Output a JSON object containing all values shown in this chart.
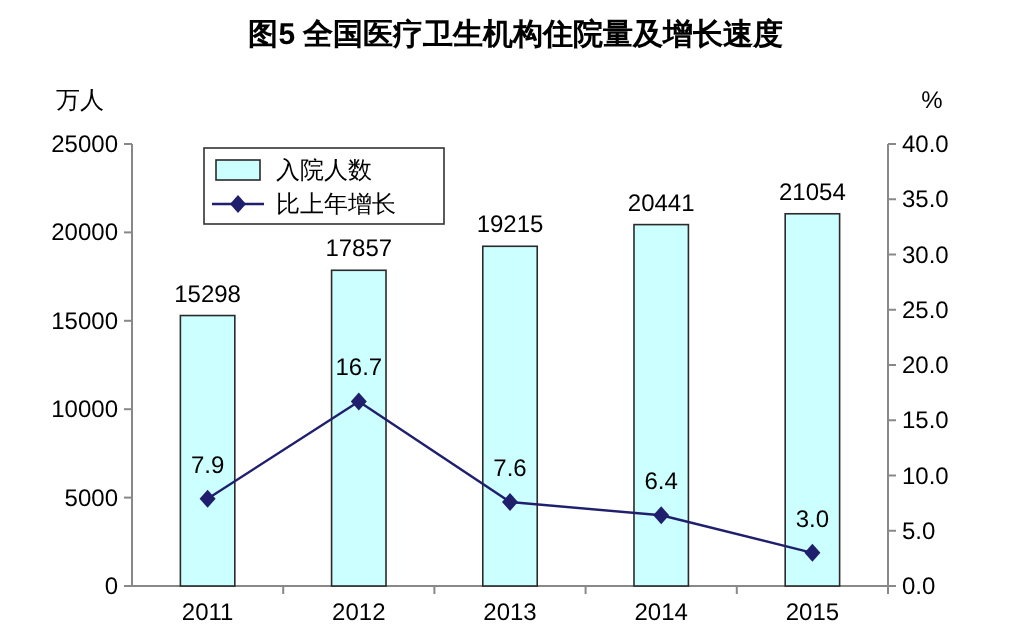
{
  "chart_data": {
    "type": "bar",
    "title": "图5  全国医疗卫生机构住院量及增长速度",
    "ylabel": "万人",
    "y2label": "%",
    "categories": [
      "2011",
      "2012",
      "2013",
      "2014",
      "2015"
    ],
    "series": [
      {
        "name": "入院人数",
        "color": "#ccffff",
        "values": [
          15298,
          17857,
          19215,
          20441,
          21054
        ]
      },
      {
        "name": "比上年增长",
        "type": "line",
        "axis": "y2",
        "color": "#1f1f6e",
        "marker": "diamond",
        "values": [
          7.9,
          16.7,
          7.6,
          6.4,
          3.0
        ],
        "value_labels": [
          "7.9",
          "16.7",
          "7.6",
          "6.4",
          "3.0"
        ]
      }
    ],
    "ylim": [
      0,
      25000
    ],
    "yticks": [
      0,
      5000,
      10000,
      15000,
      20000,
      25000
    ],
    "y2lim": [
      0,
      40
    ],
    "y2ticks": [
      {
        "value": 0,
        "label": "0.0"
      },
      {
        "value": 5,
        "label": "5.0"
      },
      {
        "value": 10,
        "label": "10.0"
      },
      {
        "value": 15,
        "label": "15.0"
      },
      {
        "value": 20,
        "label": "20.0"
      },
      {
        "value": 25,
        "label": "25.0"
      },
      {
        "value": 30,
        "label": "30.0"
      },
      {
        "value": 35,
        "label": "35.0"
      },
      {
        "value": 40,
        "label": "40.0"
      }
    ],
    "data_labels": true,
    "legend": "top left",
    "grid": false
  }
}
